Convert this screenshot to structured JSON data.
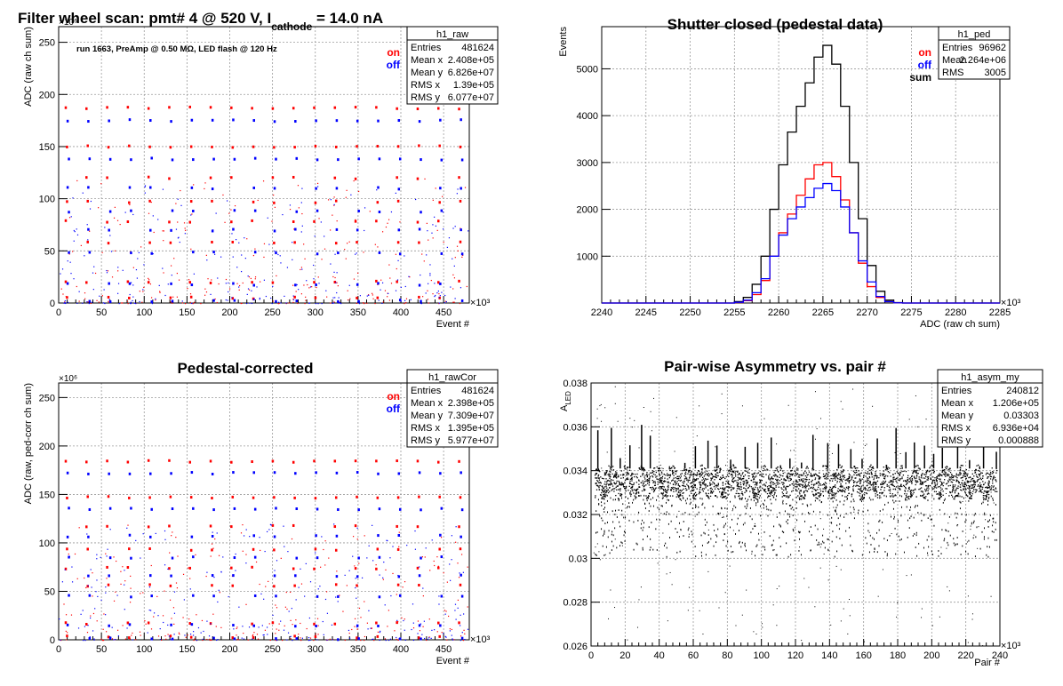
{
  "chart_data": [
    {
      "id": "raw",
      "type": "scatter",
      "title": "Filter wheel scan: pmt#   4 @   520 V, I",
      "title_sub": "cathode",
      "title_tail": " = 14.0 nA",
      "run_label": "run 1663, PreAmp @ 0.50 MΩ, LED flash @  120 Hz",
      "xlabel": "Event #",
      "ylabel": "ADC (raw ch sum)",
      "x_multiplier": "×10³",
      "y_multiplier": "×10⁶",
      "xlim": [
        0,
        480
      ],
      "ylim": [
        0,
        265
      ],
      "xticks": [
        0,
        50,
        100,
        150,
        200,
        250,
        300,
        350,
        400,
        450
      ],
      "yticks": [
        0,
        50,
        100,
        150,
        200,
        250
      ],
      "grid": true,
      "legend": [
        {
          "name": "on",
          "color": "#ff0000"
        },
        {
          "name": "off",
          "color": "#0000ff"
        }
      ],
      "stats": {
        "name": "h1_raw",
        "rows": [
          [
            "Entries",
            "481624"
          ],
          [
            "Mean x",
            "2.408e+05"
          ],
          [
            "Mean y",
            "6.826e+07"
          ],
          [
            "RMS x",
            "1.39e+05"
          ],
          [
            "RMS y",
            "6.077e+07"
          ]
        ]
      },
      "series": [
        {
          "name": "on",
          "color": "#ff0000",
          "levels": [
            187,
            150,
            120,
            97,
            78,
            58,
            20,
            5
          ]
        },
        {
          "name": "off",
          "color": "#0000ff",
          "levels": [
            175,
            138,
            110,
            88,
            70,
            48,
            18,
            2
          ]
        }
      ],
      "blocks_x_start": 7,
      "blocks_x_step": 24.2
    },
    {
      "id": "ped",
      "type": "line",
      "title": "Shutter closed (pedestal data)",
      "xlabel": "ADC (raw ch sum)",
      "ylabel": "Events",
      "x_multiplier": "×10³",
      "xlim": [
        2240,
        2285
      ],
      "ylim": [
        0,
        5900
      ],
      "xticks": [
        2240,
        2245,
        2250,
        2255,
        2260,
        2265,
        2270,
        2275,
        2280,
        2285
      ],
      "yticks": [
        1000,
        2000,
        3000,
        4000,
        5000
      ],
      "grid": true,
      "legend": [
        {
          "name": "on",
          "color": "#ff0000"
        },
        {
          "name": "off",
          "color": "#0000ff"
        },
        {
          "name": "sum",
          "color": "#000000"
        }
      ],
      "stats": {
        "name": "h1_ped",
        "rows": [
          [
            "Entries",
            "96962"
          ],
          [
            "Mean",
            "2.264e+06"
          ],
          [
            "RMS",
            "3005"
          ]
        ]
      },
      "bin_start": 2255,
      "bin_width": 1,
      "series": [
        {
          "name": "sum",
          "color": "#000000",
          "values": [
            30,
            120,
            400,
            1000,
            2000,
            2950,
            3650,
            4200,
            4700,
            5250,
            5500,
            5100,
            4200,
            3000,
            1800,
            800,
            250,
            60,
            10
          ]
        },
        {
          "name": "on",
          "color": "#ff0000",
          "values": [
            10,
            50,
            180,
            480,
            1000,
            1500,
            1900,
            2300,
            2650,
            2950,
            3000,
            2700,
            2200,
            1500,
            850,
            350,
            120,
            30,
            5
          ]
        },
        {
          "name": "off",
          "color": "#0000ff",
          "values": [
            15,
            60,
            220,
            520,
            1000,
            1450,
            1800,
            2050,
            2250,
            2450,
            2550,
            2400,
            2050,
            1500,
            900,
            450,
            140,
            30,
            5
          ]
        }
      ]
    },
    {
      "id": "rawCor",
      "type": "scatter",
      "title": "Pedestal-corrected",
      "xlabel": "Event #",
      "ylabel": "ADC (raw, ped-corr ch sum)",
      "x_multiplier": "×10³",
      "y_multiplier": "×10⁶",
      "xlim": [
        0,
        480
      ],
      "ylim": [
        0,
        265
      ],
      "xticks": [
        0,
        50,
        100,
        150,
        200,
        250,
        300,
        350,
        400,
        450
      ],
      "yticks": [
        0,
        50,
        100,
        150,
        200,
        250
      ],
      "grid": true,
      "legend": [
        {
          "name": "on",
          "color": "#ff0000"
        },
        {
          "name": "off",
          "color": "#0000ff"
        }
      ],
      "stats": {
        "name": "h1_rawCor",
        "rows": [
          [
            "Entries",
            "481624"
          ],
          [
            "Mean x",
            "2.398e+05"
          ],
          [
            "Mean y",
            "7.309e+07"
          ],
          [
            "RMS x",
            "1.395e+05"
          ],
          [
            "RMS y",
            "5.977e+07"
          ]
        ]
      },
      "series": [
        {
          "name": "on",
          "color": "#ff0000",
          "levels": [
            184,
            147,
            117,
            93,
            74,
            56,
            17,
            3
          ]
        },
        {
          "name": "off",
          "color": "#0000ff",
          "levels": [
            172,
            135,
            107,
            85,
            66,
            45,
            15,
            1
          ]
        }
      ],
      "blocks_x_start": 7,
      "blocks_x_step": 24.2
    },
    {
      "id": "asym",
      "type": "scatter",
      "title": "Pair-wise Asymmetry vs. pair #",
      "xlabel": "Pair #",
      "ylabel": "A",
      "ylabel_sub": "LED",
      "x_multiplier": "×10³",
      "xlim": [
        0,
        240
      ],
      "ylim": [
        0.026,
        0.038
      ],
      "xticks": [
        0,
        20,
        40,
        60,
        80,
        100,
        120,
        140,
        160,
        180,
        200,
        220,
        240
      ],
      "yticks": [
        0.026,
        0.028,
        0.03,
        0.032,
        0.034,
        0.036,
        0.038
      ],
      "grid": true,
      "stats": {
        "name": "h1_asym_my",
        "rows": [
          [
            "Entries",
            "240812"
          ],
          [
            "Mean x",
            "1.206e+05"
          ],
          [
            "Mean y",
            "0.03303"
          ],
          [
            "RMS x",
            "6.936e+04"
          ],
          [
            "RMS y",
            "0.000888"
          ]
        ]
      },
      "series": [
        {
          "name": "",
          "color": "#000000",
          "band_center": 0.0335,
          "band_halfwidth": 0.0006,
          "spike_max": 0.0362,
          "dip_min": 0.0301
        }
      ]
    }
  ]
}
